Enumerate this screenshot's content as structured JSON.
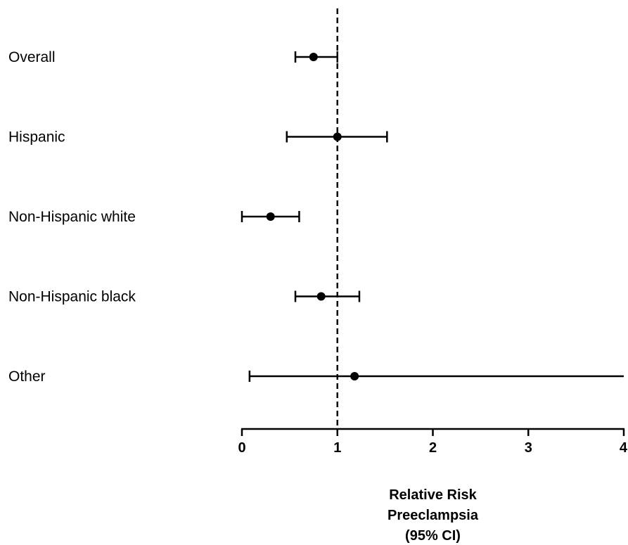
{
  "chart_data": {
    "type": "forest",
    "categories": [
      "Overall",
      "Hispanic",
      "Non-Hispanic white",
      "Non-Hispanic black",
      "Other"
    ],
    "estimates": [
      0.75,
      1.0,
      0.3,
      0.83,
      1.18
    ],
    "ci_lower": [
      0.56,
      0.47,
      0.0,
      0.56,
      0.08
    ],
    "ci_upper": [
      1.0,
      1.52,
      0.6,
      1.23,
      4.0
    ],
    "reference_line": 1,
    "xlim": [
      0,
      4
    ],
    "xticks": [
      "0",
      "1",
      "2",
      "3",
      "4"
    ],
    "xlabel": [
      "Relative Risk",
      "Preeclampsia",
      "(95% CI)"
    ],
    "grid": false,
    "colors": {
      "marks": "#000000"
    }
  }
}
